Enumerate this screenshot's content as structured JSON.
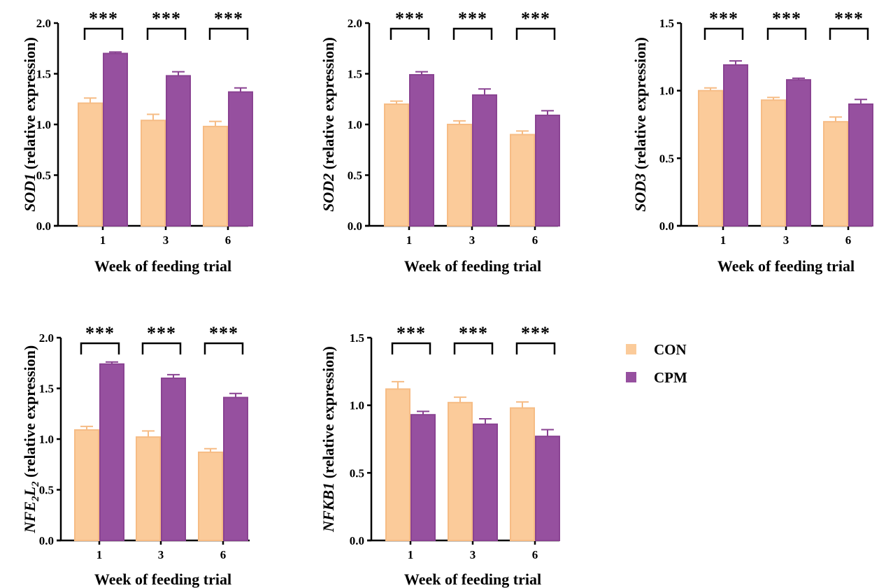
{
  "chart_data": [
    {
      "type": "bar",
      "categories": [
        "1",
        "3",
        "6"
      ],
      "xlabel": "Week of feeding trial",
      "ylabel_gene": "SOD1",
      "ylabel_rest": " (relative expression)",
      "ylim": [
        0,
        2.0
      ],
      "yticks": [
        "0.0",
        "0.5",
        "1.0",
        "1.5",
        "2.0"
      ],
      "series": [
        {
          "name": "CON",
          "values": [
            1.21,
            1.04,
            0.98
          ],
          "errors": [
            0.05,
            0.06,
            0.05
          ]
        },
        {
          "name": "CPM",
          "values": [
            1.7,
            1.48,
            1.32
          ],
          "errors": [
            0.015,
            0.04,
            0.04
          ]
        }
      ],
      "significance": [
        "***",
        "***",
        "***"
      ]
    },
    {
      "type": "bar",
      "categories": [
        "1",
        "3",
        "6"
      ],
      "xlabel": "Week of feeding trial",
      "ylabel_gene": "SOD2",
      "ylabel_rest": " (relative expression)",
      "ylim": [
        0,
        2.0
      ],
      "yticks": [
        "0.0",
        "0.5",
        "1.0",
        "1.5",
        "2.0"
      ],
      "series": [
        {
          "name": "CON",
          "values": [
            1.2,
            1.0,
            0.9
          ],
          "errors": [
            0.03,
            0.035,
            0.035
          ]
        },
        {
          "name": "CPM",
          "values": [
            1.49,
            1.29,
            1.09
          ],
          "errors": [
            0.03,
            0.06,
            0.045
          ]
        }
      ],
      "significance": [
        "***",
        "***",
        "***"
      ]
    },
    {
      "type": "bar",
      "categories": [
        "1",
        "3",
        "6"
      ],
      "xlabel": "Week of feeding trial",
      "ylabel_gene": "SOD3",
      "ylabel_rest": " (relative expression)",
      "ylim": [
        0,
        1.5
      ],
      "yticks": [
        "0.0",
        "0.5",
        "1.0",
        "1.5"
      ],
      "series": [
        {
          "name": "CON",
          "values": [
            1.0,
            0.93,
            0.77
          ],
          "errors": [
            0.02,
            0.02,
            0.035
          ]
        },
        {
          "name": "CPM",
          "values": [
            1.19,
            1.08,
            0.9
          ],
          "errors": [
            0.03,
            0.012,
            0.035
          ]
        }
      ],
      "significance": [
        "***",
        "***",
        "***"
      ]
    },
    {
      "type": "bar",
      "categories": [
        "1",
        "3",
        "6"
      ],
      "xlabel": "Week of feeding trial",
      "ylabel_gene": "NFE",
      "ylabel_sub1": "2",
      "ylabel_mid": "L",
      "ylabel_sub2": "2",
      "ylabel_rest": " (relative expression)",
      "ylim": [
        0,
        2.0
      ],
      "yticks": [
        "0.0",
        "0.5",
        "1.0",
        "1.5",
        "2.0"
      ],
      "series": [
        {
          "name": "CON",
          "values": [
            1.09,
            1.02,
            0.87
          ],
          "errors": [
            0.035,
            0.06,
            0.035
          ]
        },
        {
          "name": "CPM",
          "values": [
            1.74,
            1.6,
            1.41
          ],
          "errors": [
            0.02,
            0.035,
            0.04
          ]
        }
      ],
      "significance": [
        "***",
        "***",
        "***"
      ]
    },
    {
      "type": "bar",
      "categories": [
        "1",
        "3",
        "6"
      ],
      "xlabel": "Week of feeding trial",
      "ylabel_gene": "NFKB1",
      "ylabel_rest": " (relative expression)",
      "ylim": [
        0,
        1.5
      ],
      "yticks": [
        "0.0",
        "0.5",
        "1.0",
        "1.5"
      ],
      "series": [
        {
          "name": "CON",
          "values": [
            1.12,
            1.02,
            0.98
          ],
          "errors": [
            0.055,
            0.04,
            0.045
          ]
        },
        {
          "name": "CPM",
          "values": [
            0.93,
            0.86,
            0.77
          ],
          "errors": [
            0.025,
            0.04,
            0.05
          ]
        }
      ],
      "significance": [
        "***",
        "***",
        "***"
      ]
    }
  ],
  "legend": {
    "placement": "right",
    "items": [
      {
        "label": "CON",
        "color": "#FBCB9A"
      },
      {
        "label": "CPM",
        "color": "#96509F"
      }
    ]
  },
  "colors": {
    "con_fill": "#FBCB9A",
    "con_stroke": "#F6BC85",
    "cpm_fill": "#96509F",
    "cpm_stroke": "#8A4392",
    "axis": "#000000"
  }
}
